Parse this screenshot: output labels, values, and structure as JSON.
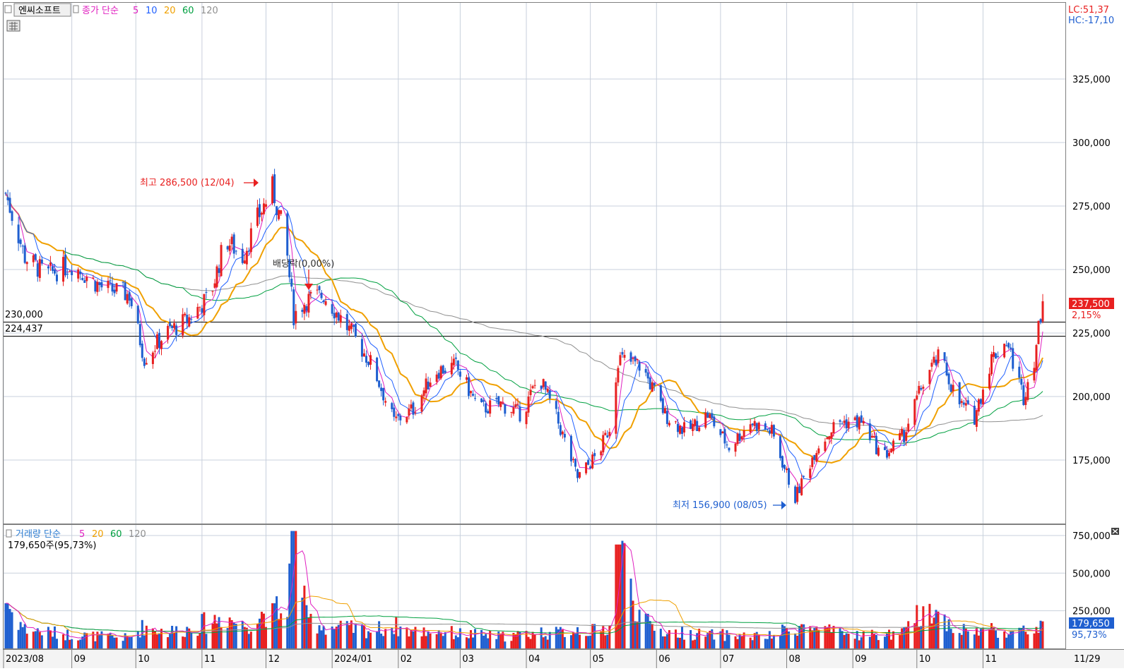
{
  "header": {
    "stock_name": "엔씨소프트",
    "price_label": "종가 단순",
    "ma_periods": [
      "5",
      "10",
      "20",
      "60",
      "120"
    ],
    "ma_colors": [
      "#e020c0",
      "#2060ff",
      "#f0a000",
      "#00a040",
      "#909090"
    ],
    "lc": "LC:51,37",
    "hc": "HC:-17,10"
  },
  "volume_header": {
    "label": "거래량 단순",
    "ma_periods": [
      "5",
      "20",
      "60",
      "120"
    ],
    "ma_colors": [
      "#e020c0",
      "#f0a000",
      "#00a040",
      "#909090"
    ],
    "last_volume": "179,650주(95,73%)"
  },
  "annotations": {
    "high": "최고 286,500 (12/04)",
    "low": "최저 156,900 (08/05)",
    "dividend": "배당락(0,00%)",
    "line1_label": "230,000",
    "line2_label": "224,437",
    "last_price": "237,500",
    "last_change": "2,15%",
    "last_volume_tag": "179,650",
    "last_volume_pct": "95,73%"
  },
  "price_axis": [
    "325,000",
    "300,000",
    "275,000",
    "250,000",
    "225,000",
    "200,000",
    "175,000"
  ],
  "volume_axis": [
    "750,000",
    "500,000",
    "250,000"
  ],
  "x_axis": [
    "2023/08",
    "09",
    "10",
    "11",
    "12",
    "2024/01",
    "02",
    "03",
    "04",
    "05",
    "06",
    "07",
    "08",
    "09",
    "10",
    "11"
  ],
  "x_axis_end": "11/29",
  "colors": {
    "up": "#e82020",
    "down": "#1f5fd0",
    "grid": "#c8d0dc"
  },
  "chart_data": {
    "type": "candlestick",
    "title": "엔씨소프트",
    "ylim": [
      150000,
      355000
    ],
    "volume_ylim": [
      0,
      820000
    ],
    "horizontal_lines": [
      230000,
      224437
    ],
    "anchors": [
      {
        "date": "2023-08-01",
        "close": 280000,
        "volume": 300000
      },
      {
        "date": "2023-08-10",
        "close": 255000,
        "volume": 130000
      },
      {
        "date": "2023-08-20",
        "close": 248000,
        "volume": 110000
      },
      {
        "date": "2023-09-01",
        "close": 252000,
        "volume": 90000
      },
      {
        "date": "2023-09-15",
        "close": 243000,
        "volume": 80000
      },
      {
        "date": "2023-09-28",
        "close": 240000,
        "volume": 70000
      },
      {
        "date": "2023-10-05",
        "close": 215000,
        "volume": 150000
      },
      {
        "date": "2023-10-15",
        "close": 225000,
        "volume": 110000
      },
      {
        "date": "2023-10-25",
        "close": 230000,
        "volume": 130000
      },
      {
        "date": "2023-11-05",
        "close": 240000,
        "volume": 180000
      },
      {
        "date": "2023-11-12",
        "close": 262000,
        "volume": 220000
      },
      {
        "date": "2023-11-20",
        "close": 255000,
        "volume": 150000
      },
      {
        "date": "2023-11-27",
        "close": 270000,
        "volume": 200000
      },
      {
        "date": "2023-12-04",
        "close": 282000,
        "volume": 300000
      },
      {
        "date": "2023-12-10",
        "close": 262000,
        "volume": 180000
      },
      {
        "date": "2023-12-14",
        "close": 232000,
        "volume": 780000
      },
      {
        "date": "2023-12-20",
        "close": 238000,
        "volume": 200000
      },
      {
        "date": "2023-12-28",
        "close": 240000,
        "volume": 150000
      },
      {
        "date": "2024-01-10",
        "close": 225000,
        "volume": 130000
      },
      {
        "date": "2024-01-20",
        "close": 212000,
        "volume": 120000
      },
      {
        "date": "2024-01-30",
        "close": 190000,
        "volume": 150000
      },
      {
        "date": "2024-02-08",
        "close": 195000,
        "volume": 110000
      },
      {
        "date": "2024-02-18",
        "close": 210000,
        "volume": 120000
      },
      {
        "date": "2024-02-28",
        "close": 212000,
        "volume": 100000
      },
      {
        "date": "2024-03-10",
        "close": 195000,
        "volume": 90000
      },
      {
        "date": "2024-03-20",
        "close": 197000,
        "volume": 80000
      },
      {
        "date": "2024-03-30",
        "close": 193000,
        "volume": 90000
      },
      {
        "date": "2024-04-07",
        "close": 208000,
        "volume": 110000
      },
      {
        "date": "2024-04-15",
        "close": 192000,
        "volume": 100000
      },
      {
        "date": "2024-04-25",
        "close": 168000,
        "volume": 130000
      },
      {
        "date": "2024-05-05",
        "close": 178000,
        "volume": 110000
      },
      {
        "date": "2024-05-10",
        "close": 188000,
        "volume": 150000
      },
      {
        "date": "2024-05-14",
        "close": 215000,
        "volume": 690000
      },
      {
        "date": "2024-05-25",
        "close": 212000,
        "volume": 180000
      },
      {
        "date": "2024-06-05",
        "close": 193000,
        "volume": 110000
      },
      {
        "date": "2024-06-15",
        "close": 186000,
        "volume": 100000
      },
      {
        "date": "2024-06-25",
        "close": 193000,
        "volume": 90000
      },
      {
        "date": "2024-07-05",
        "close": 180000,
        "volume": 90000
      },
      {
        "date": "2024-07-15",
        "close": 190000,
        "volume": 80000
      },
      {
        "date": "2024-07-25",
        "close": 186000,
        "volume": 80000
      },
      {
        "date": "2024-08-05",
        "close": 160000,
        "volume": 150000
      },
      {
        "date": "2024-08-15",
        "close": 180000,
        "volume": 130000
      },
      {
        "date": "2024-08-25",
        "close": 190000,
        "volume": 100000
      },
      {
        "date": "2024-09-05",
        "close": 190000,
        "volume": 90000
      },
      {
        "date": "2024-09-15",
        "close": 176000,
        "volume": 90000
      },
      {
        "date": "2024-09-25",
        "close": 185000,
        "volume": 100000
      },
      {
        "date": "2024-10-05",
        "close": 208000,
        "volume": 280000
      },
      {
        "date": "2024-10-12",
        "close": 216000,
        "volume": 210000
      },
      {
        "date": "2024-10-20",
        "close": 198000,
        "volume": 130000
      },
      {
        "date": "2024-10-28",
        "close": 192000,
        "volume": 110000
      },
      {
        "date": "2024-11-05",
        "close": 215000,
        "volume": 130000
      },
      {
        "date": "2024-11-12",
        "close": 222000,
        "volume": 110000
      },
      {
        "date": "2024-11-20",
        "close": 200000,
        "volume": 110000
      },
      {
        "date": "2024-11-25",
        "close": 215000,
        "volume": 130000
      },
      {
        "date": "2024-11-29",
        "close": 237500,
        "volume": 179650
      }
    ]
  }
}
